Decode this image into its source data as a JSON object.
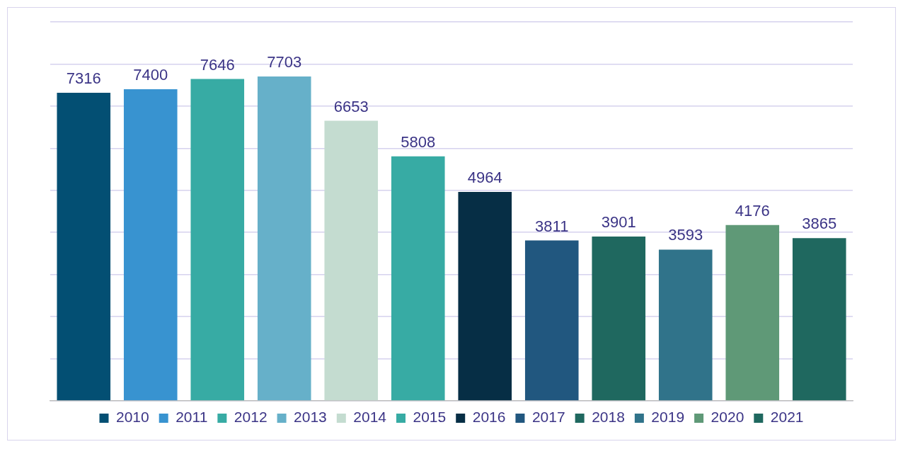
{
  "chart_data": {
    "type": "bar",
    "stacked": true,
    "categories": [
      null,
      null,
      null,
      null,
      null,
      null,
      null,
      null,
      null,
      null,
      null,
      null
    ],
    "series": [
      {
        "name": "2010",
        "color": "#034f73",
        "values": [
          7316,
          null,
          null,
          null,
          null,
          null,
          null,
          null,
          null,
          null,
          null,
          null
        ]
      },
      {
        "name": "2011",
        "color": "#3893d0",
        "values": [
          null,
          7400,
          null,
          null,
          null,
          null,
          null,
          null,
          null,
          null,
          null,
          null
        ]
      },
      {
        "name": "2012",
        "color": "#37aba4",
        "values": [
          null,
          null,
          7646,
          null,
          null,
          null,
          null,
          null,
          null,
          null,
          null,
          null
        ]
      },
      {
        "name": "2013",
        "color": "#66b0c9",
        "values": [
          null,
          null,
          null,
          7703,
          null,
          null,
          null,
          null,
          null,
          null,
          null,
          null
        ]
      },
      {
        "name": "2014",
        "color": "#c4dcd0",
        "values": [
          null,
          null,
          null,
          null,
          6653,
          null,
          null,
          null,
          null,
          null,
          null,
          null
        ]
      },
      {
        "name": "2015",
        "color": "#37aba4",
        "values": [
          null,
          null,
          null,
          null,
          null,
          5808,
          null,
          null,
          null,
          null,
          null,
          null
        ]
      },
      {
        "name": "2016",
        "color": "#062e45",
        "values": [
          null,
          null,
          null,
          null,
          null,
          null,
          4964,
          null,
          null,
          null,
          null,
          null
        ]
      },
      {
        "name": "2017",
        "color": "#21577f",
        "values": [
          null,
          null,
          null,
          null,
          null,
          null,
          null,
          3811,
          null,
          null,
          null,
          null
        ]
      },
      {
        "name": "2018",
        "color": "#1f685f",
        "values": [
          null,
          null,
          null,
          null,
          null,
          null,
          null,
          null,
          3901,
          null,
          null,
          null
        ]
      },
      {
        "name": "2019",
        "color": "#30738a",
        "values": [
          null,
          null,
          null,
          null,
          null,
          null,
          null,
          null,
          null,
          3593,
          null,
          null
        ]
      },
      {
        "name": "2020",
        "color": "#5f9977",
        "values": [
          null,
          null,
          null,
          null,
          null,
          null,
          null,
          null,
          null,
          null,
          4176,
          null
        ]
      },
      {
        "name": "2021",
        "color": "#1f685f",
        "values": [
          null,
          null,
          null,
          null,
          null,
          null,
          null,
          null,
          null,
          null,
          null,
          3865
        ]
      }
    ],
    "ylim": [
      0,
      9000
    ],
    "yticks": [
      {
        "value": 0,
        "label": null
      },
      {
        "value": 1000,
        "label": null
      },
      {
        "value": 2000,
        "label": null
      },
      {
        "value": 3000,
        "label": null
      },
      {
        "value": 4000,
        "label": null
      },
      {
        "value": 5000,
        "label": null
      },
      {
        "value": 6000,
        "label": null
      },
      {
        "value": 7000,
        "label": null
      },
      {
        "value": 8000,
        "label": null
      },
      {
        "value": 9000,
        "label": null
      }
    ],
    "grid": "y",
    "legend": "bottom",
    "tick_labels": false,
    "data_labels": true
  }
}
